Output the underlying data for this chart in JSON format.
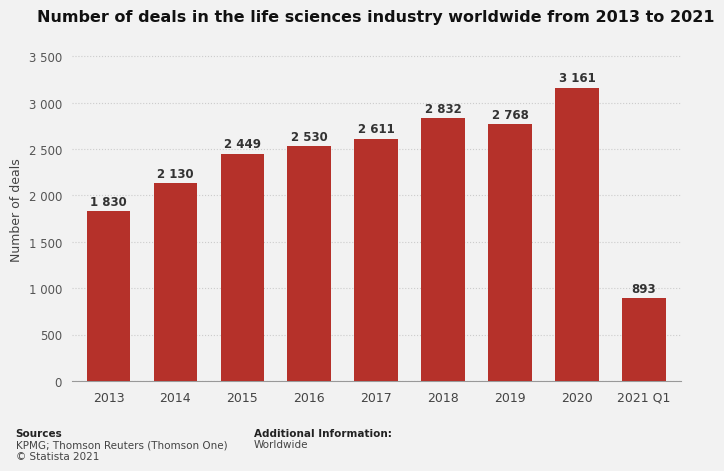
{
  "title": "Number of deals in the life sciences industry worldwide from 2013 to 2021",
  "categories": [
    "2013",
    "2014",
    "2015",
    "2016",
    "2017",
    "2018",
    "2019",
    "2020",
    "2021 Q1"
  ],
  "values": [
    1830,
    2130,
    2449,
    2530,
    2611,
    2832,
    2768,
    3161,
    893
  ],
  "bar_color": "#b5312a",
  "ylabel": "Number of deals",
  "ylim": [
    0,
    3700
  ],
  "yticks": [
    0,
    500,
    1000,
    1500,
    2000,
    2500,
    3000,
    3500
  ],
  "ytick_labels": [
    "0",
    "500",
    "1 000",
    "1 500",
    "2 000",
    "2 500",
    "3 000",
    "3 500"
  ],
  "background_color": "#f2f2f2",
  "plot_bg_color": "#f2f2f2",
  "title_fontsize": 11.5,
  "label_fontsize": 8.5,
  "sources_bold": "Sources",
  "sources_rest": "\nKPMG; Thomson Reuters (Thomson One)\n© Statista 2021",
  "additional_bold": "Additional Information:",
  "additional_rest": "\nWorldwide",
  "bar_label_values": [
    "1 830",
    "2 130",
    "2 449",
    "2 530",
    "2 611",
    "2 832",
    "2 768",
    "3 161",
    "893"
  ]
}
